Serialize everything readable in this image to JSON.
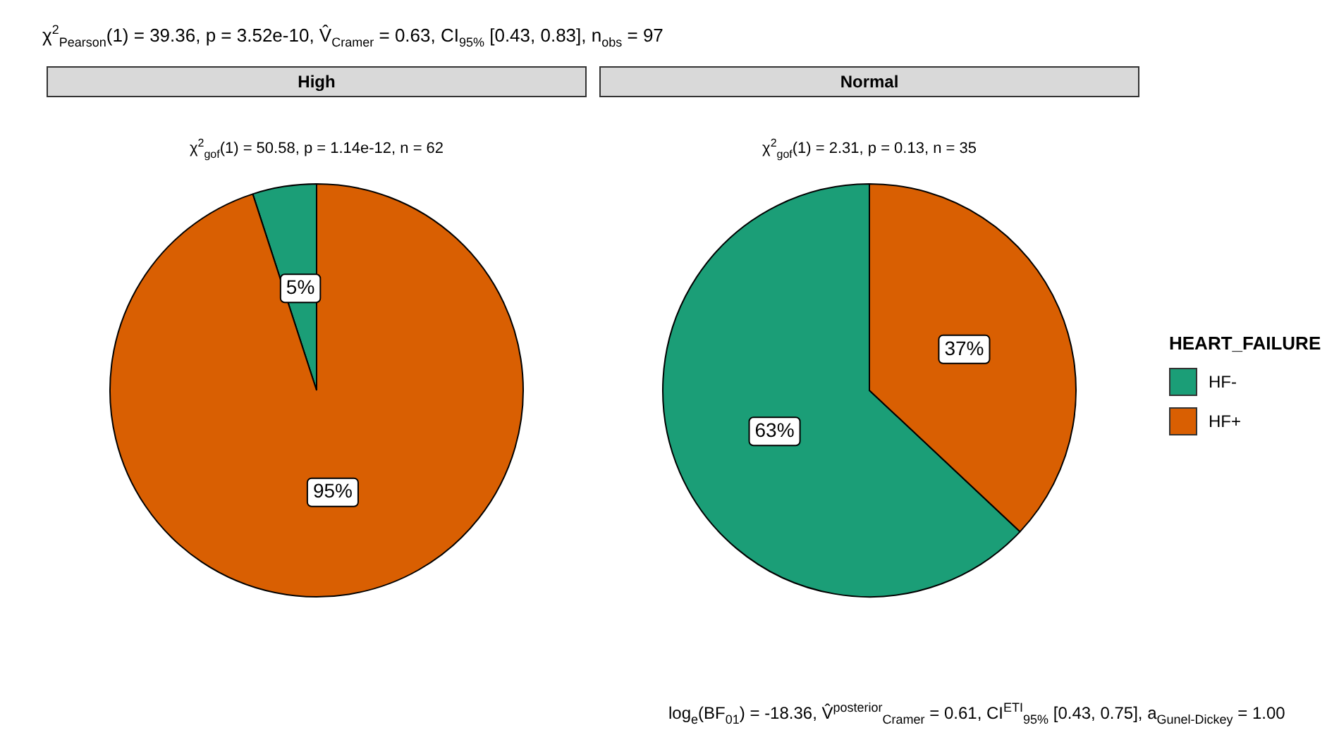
{
  "chart_data": [
    {
      "type": "pie",
      "title": "High",
      "subtitle": "χ$^{2}$$_{gof}$(1) = 50.58,  p = 1.14e-12,  n = 62",
      "annotations": [
        "χ$^{2}$$_{Pearson}$(1) = 39.36, p = 3.52e-10, V̂$_{Cramer}$ = 0.63, CI$_{95%}$ [0.43, 0.83], n$_{obs}$ = 97"
      ],
      "categories": [
        "HF-",
        "HF+"
      ],
      "values": [
        5,
        95
      ],
      "value_labels": [
        "5%",
        "95%"
      ],
      "colors": [
        "#1b9e77",
        "#d95f02"
      ],
      "legend": "right",
      "legend_title": "HEART_FAILURE"
    },
    {
      "type": "pie",
      "title": "Normal",
      "subtitle": "χ$^{2}$$_{gof}$(1) = 2.31,  p = 0.13,  n = 35",
      "annotations": [
        "log$_{e}$(BF$_{01}$) = -18.36, V̂$^{posterior}$$_{Cramer}$ = 0.61, CI$^{ETI}$$_{95%}$ [0.43, 0.75], a$_{Gunel-Dickey}$ = 1.00"
      ],
      "categories": [
        null,
        null
      ],
      "values": [
        63,
        37
      ],
      "value_labels": [
        "63%",
        "37%"
      ],
      "colors": [
        "#1b9e77",
        "#d95f02"
      ]
    }
  ]
}
